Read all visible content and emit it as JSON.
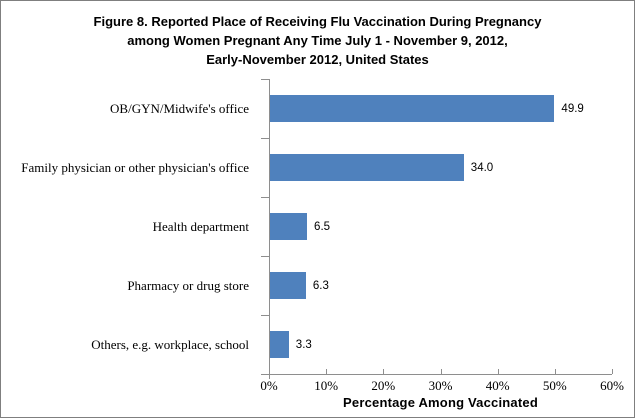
{
  "figure": {
    "title_lines": [
      "Figure 8. Reported Place of Receiving Flu Vaccination During Pregnancy",
      "among Women Pregnant Any Time July 1 - November 9, 2012,",
      "Early-November 2012, United States"
    ]
  },
  "chart_data": {
    "type": "bar",
    "orientation": "horizontal",
    "title": "Figure 8. Reported Place of Receiving Flu Vaccination During Pregnancy among Women Pregnant Any Time July 1 - November 9, 2012, Early-November 2012, United States",
    "categories": [
      "OB/GYN/Midwife's office",
      "Family physician or other physician's office",
      "Health department",
      "Pharmacy or drug store",
      "Others, e.g. workplace, school"
    ],
    "values": [
      49.9,
      34.0,
      6.5,
      6.3,
      3.3
    ],
    "value_labels": [
      "49.9",
      "34.0",
      "6.5",
      "6.3",
      "3.3"
    ],
    "xlabel": "Percentage Among Vaccinated",
    "ylabel": "",
    "xlim": [
      0,
      60
    ],
    "x_tick_labels": [
      "0%",
      "10%",
      "20%",
      "30%",
      "40%",
      "50%",
      "60%"
    ],
    "grid": false,
    "legend": false,
    "bar_color": "#4f81bd",
    "axis_color": "#8e8e8e",
    "background_color": "#ffffff",
    "border_color": "#7f7f7f"
  }
}
